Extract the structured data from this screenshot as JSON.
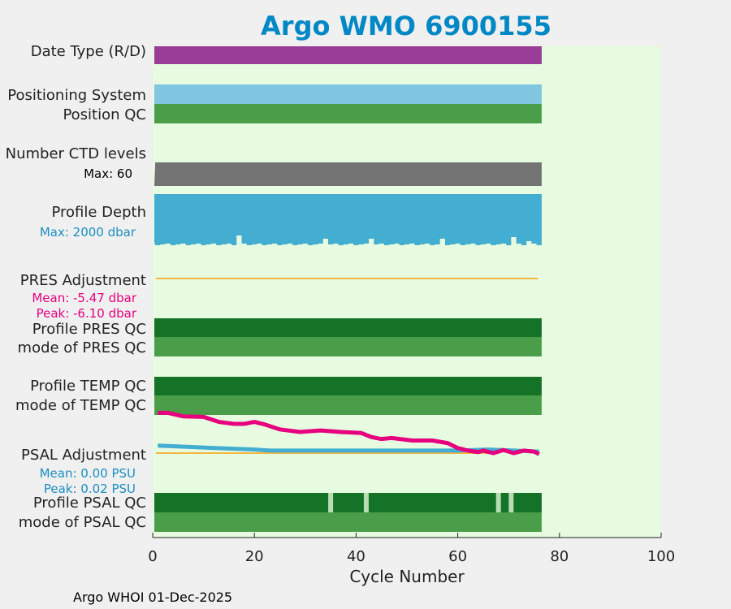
{
  "chart_data": {
    "type": "status-timeline",
    "title": "Argo WMO 6900155",
    "xlabel": "Cycle Number",
    "xlim": [
      0,
      100
    ],
    "xticks": [
      "0",
      "20",
      "40",
      "60",
      "80",
      "100"
    ],
    "last_cycle": 76,
    "footer": "Argo WHOI 01-Dec-2025",
    "row_labels": {
      "date_type": "Date Type (R/D)",
      "positioning_system": "Positioning System",
      "position_qc": "Position QC",
      "num_ctd_levels": "Number CTD levels",
      "profile_depth": "Profile Depth",
      "pres_adjustment": "PRES Adjustment",
      "profile_pres_qc": "Profile PRES QC",
      "mode_pres_qc": "mode of PRES QC",
      "profile_temp_qc": "Profile TEMP QC",
      "mode_temp_qc": "mode of TEMP QC",
      "psal_adjustment": "PSAL Adjustment",
      "profile_psal_qc": "Profile PSAL QC",
      "mode_psal_qc": "mode of PSAL QC"
    },
    "annotations": {
      "ctd_max": "Max: 60",
      "depth_max": "Max: 2000 dbar",
      "pres_mean": "Mean: -5.47 dbar",
      "pres_peak": "Peak: -6.10 dbar",
      "psal_mean": "Mean: 0.00 PSU",
      "psal_peak": "Peak: 0.02 PSU"
    },
    "psal_qc_gaps": [
      35,
      42,
      68,
      70.5
    ],
    "psal_adjustment_series": {
      "cycles": [
        1,
        3,
        6,
        10,
        13,
        16,
        18,
        20,
        22,
        25,
        29,
        33,
        37,
        41,
        43,
        45,
        47,
        51,
        55,
        58,
        60,
        62,
        64,
        65,
        67,
        69,
        71,
        73,
        75,
        76
      ],
      "values": [
        0.8,
        0.8,
        0.73,
        0.72,
        0.62,
        0.58,
        0.58,
        0.62,
        0.57,
        0.47,
        0.42,
        0.45,
        0.42,
        0.4,
        0.32,
        0.28,
        0.3,
        0.25,
        0.25,
        0.2,
        0.1,
        0.05,
        0.02,
        0.05,
        0.0,
        0.06,
        0.0,
        0.05,
        0.03,
        -0.02
      ]
    },
    "psal_secondary_series": {
      "cycles": [
        1,
        10,
        20,
        23,
        40,
        60,
        66,
        76
      ],
      "values": [
        0.15,
        0.11,
        0.07,
        0.05,
        0.05,
        0.05,
        0.07,
        0.03
      ]
    },
    "colors": {
      "title": "#0088c6",
      "plot_bg": "#e6fbe0",
      "date_type": "#993d99",
      "positioning": "#80c6e0",
      "qc_good": "#4a9e4a",
      "qc_profile": "#157327",
      "qc_gap": "#b9dcb2",
      "ctd": "#737373",
      "depth": "#43aed1",
      "adjust_orange": "#f2b643",
      "psal_line": "#e6007e",
      "psal_secondary": "#43aed1",
      "pres_text": "#e6007e",
      "psal_text": "#1a8fc0"
    }
  }
}
